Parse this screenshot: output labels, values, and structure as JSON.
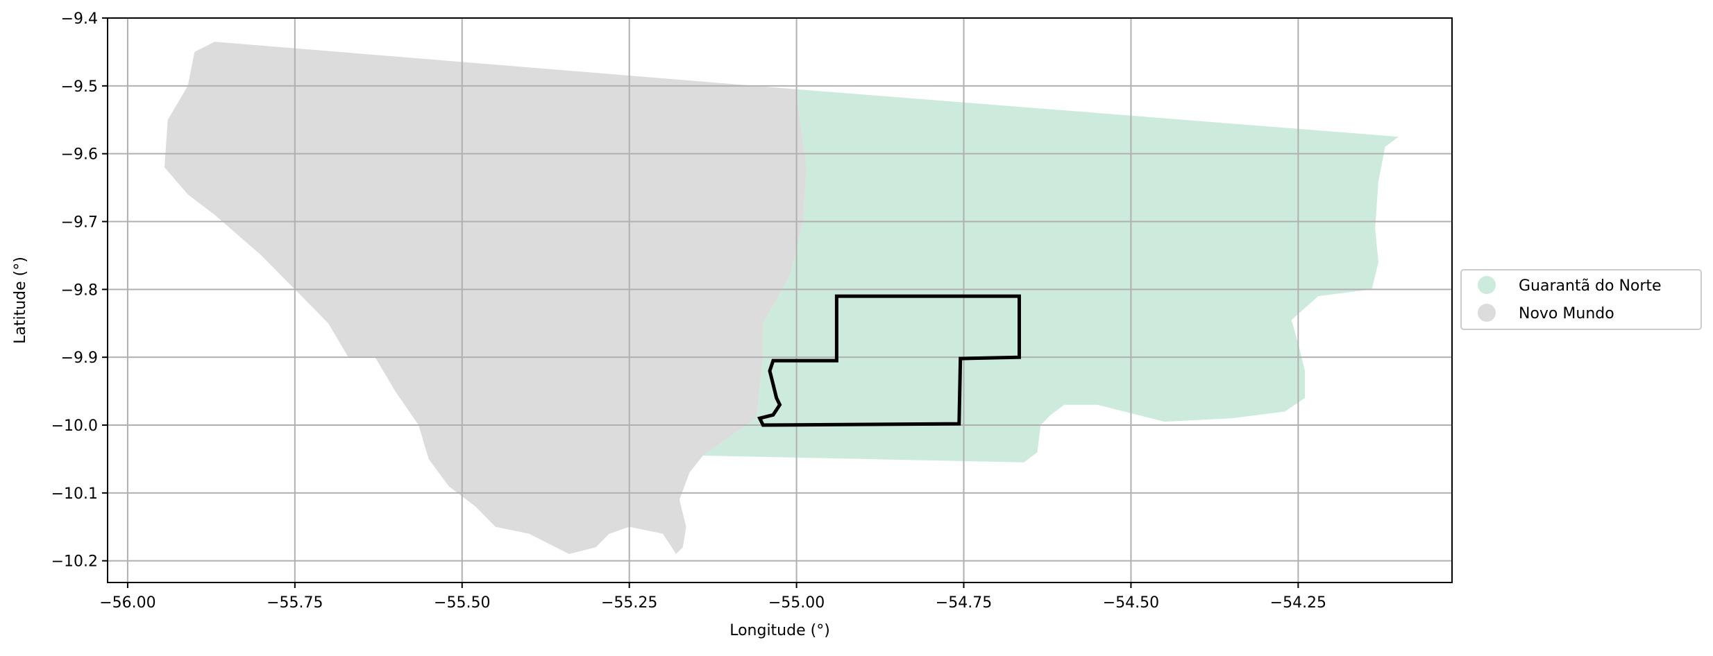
{
  "chart_data": {
    "type": "map",
    "xlabel": "Longitude (°)",
    "ylabel": "Latitude (°)",
    "xlim": [
      -56.03,
      -54.02
    ],
    "ylim": [
      -10.232,
      -9.4
    ],
    "x_ticks": [
      -56.0,
      -55.75,
      -55.5,
      -55.25,
      -55.0,
      -54.75,
      -54.5,
      -54.25
    ],
    "x_tick_labels": [
      "−56.00",
      "−55.75",
      "−55.50",
      "−55.25",
      "−55.00",
      "−54.75",
      "−54.50",
      "−54.25"
    ],
    "y_ticks": [
      -9.4,
      -9.5,
      -9.6,
      -9.7,
      -9.8,
      -9.9,
      -10.0,
      -10.1,
      -10.2
    ],
    "y_tick_labels": [
      "−9.4",
      "−9.5",
      "−9.6",
      "−9.7",
      "−9.8",
      "−9.9",
      "−10.0",
      "−10.1",
      "−10.2"
    ],
    "grid": true,
    "legend_position": "outside-right",
    "regions": [
      {
        "name": "Guarantã do Norte",
        "color": "#cdebdd",
        "outline": [
          [
            -55.0,
            -9.505
          ],
          [
            -54.1,
            -9.575
          ],
          [
            -54.12,
            -9.59
          ],
          [
            -54.13,
            -9.64
          ],
          [
            -54.135,
            -9.71
          ],
          [
            -54.13,
            -9.76
          ],
          [
            -54.14,
            -9.8
          ],
          [
            -54.22,
            -9.81
          ],
          [
            -54.26,
            -9.845
          ],
          [
            -54.25,
            -9.88
          ],
          [
            -54.24,
            -9.92
          ],
          [
            -54.24,
            -9.96
          ],
          [
            -54.27,
            -9.98
          ],
          [
            -54.35,
            -9.99
          ],
          [
            -54.45,
            -9.995
          ],
          [
            -54.55,
            -9.97
          ],
          [
            -54.6,
            -9.97
          ],
          [
            -54.62,
            -9.985
          ],
          [
            -54.635,
            -10.0
          ],
          [
            -54.64,
            -10.04
          ],
          [
            -54.66,
            -10.055
          ],
          [
            -54.9,
            -10.05
          ],
          [
            -55.14,
            -10.045
          ],
          [
            -55.06,
            -9.99
          ],
          [
            -55.05,
            -9.9
          ],
          [
            -55.05,
            -9.85
          ],
          [
            -55.01,
            -9.78
          ],
          [
            -54.99,
            -9.7
          ],
          [
            -54.985,
            -9.62
          ],
          [
            -54.995,
            -9.55
          ]
        ]
      },
      {
        "name": "Novo Mundo",
        "color": "#dcdcdc",
        "outline": [
          [
            -55.87,
            -9.435
          ],
          [
            -55.0,
            -9.505
          ],
          [
            -54.995,
            -9.55
          ],
          [
            -54.985,
            -9.62
          ],
          [
            -54.99,
            -9.7
          ],
          [
            -55.01,
            -9.78
          ],
          [
            -55.05,
            -9.85
          ],
          [
            -55.05,
            -9.9
          ],
          [
            -55.06,
            -9.99
          ],
          [
            -55.14,
            -10.045
          ],
          [
            -55.16,
            -10.07
          ],
          [
            -55.175,
            -10.11
          ],
          [
            -55.165,
            -10.15
          ],
          [
            -55.17,
            -10.18
          ],
          [
            -55.18,
            -10.19
          ],
          [
            -55.2,
            -10.16
          ],
          [
            -55.25,
            -10.15
          ],
          [
            -55.28,
            -10.16
          ],
          [
            -55.3,
            -10.18
          ],
          [
            -55.34,
            -10.19
          ],
          [
            -55.4,
            -10.16
          ],
          [
            -55.45,
            -10.15
          ],
          [
            -55.48,
            -10.12
          ],
          [
            -55.52,
            -10.09
          ],
          [
            -55.55,
            -10.05
          ],
          [
            -55.565,
            -10.0
          ],
          [
            -55.6,
            -9.95
          ],
          [
            -55.63,
            -9.9
          ],
          [
            -55.67,
            -9.9
          ],
          [
            -55.7,
            -9.85
          ],
          [
            -55.75,
            -9.8
          ],
          [
            -55.8,
            -9.75
          ],
          [
            -55.87,
            -9.69
          ],
          [
            -55.91,
            -9.66
          ],
          [
            -55.945,
            -9.62
          ],
          [
            -55.94,
            -9.55
          ],
          [
            -55.91,
            -9.5
          ],
          [
            -55.9,
            -9.45
          ]
        ]
      }
    ],
    "highlight_boundary": {
      "color": "#000000",
      "outline": [
        [
          -54.94,
          -9.81
        ],
        [
          -54.667,
          -9.81
        ],
        [
          -54.667,
          -9.9
        ],
        [
          -54.755,
          -9.902
        ],
        [
          -54.757,
          -9.998
        ],
        [
          -55.05,
          -10.0
        ],
        [
          -55.055,
          -9.99
        ],
        [
          -55.035,
          -9.985
        ],
        [
          -55.025,
          -9.97
        ],
        [
          -55.03,
          -9.96
        ],
        [
          -55.035,
          -9.94
        ],
        [
          -55.04,
          -9.92
        ],
        [
          -55.035,
          -9.905
        ],
        [
          -54.94,
          -9.905
        ]
      ]
    },
    "legend": [
      {
        "label": "Guarantã do Norte",
        "color": "#cdebdd"
      },
      {
        "label": "Novo Mundo",
        "color": "#dcdcdc"
      }
    ]
  }
}
